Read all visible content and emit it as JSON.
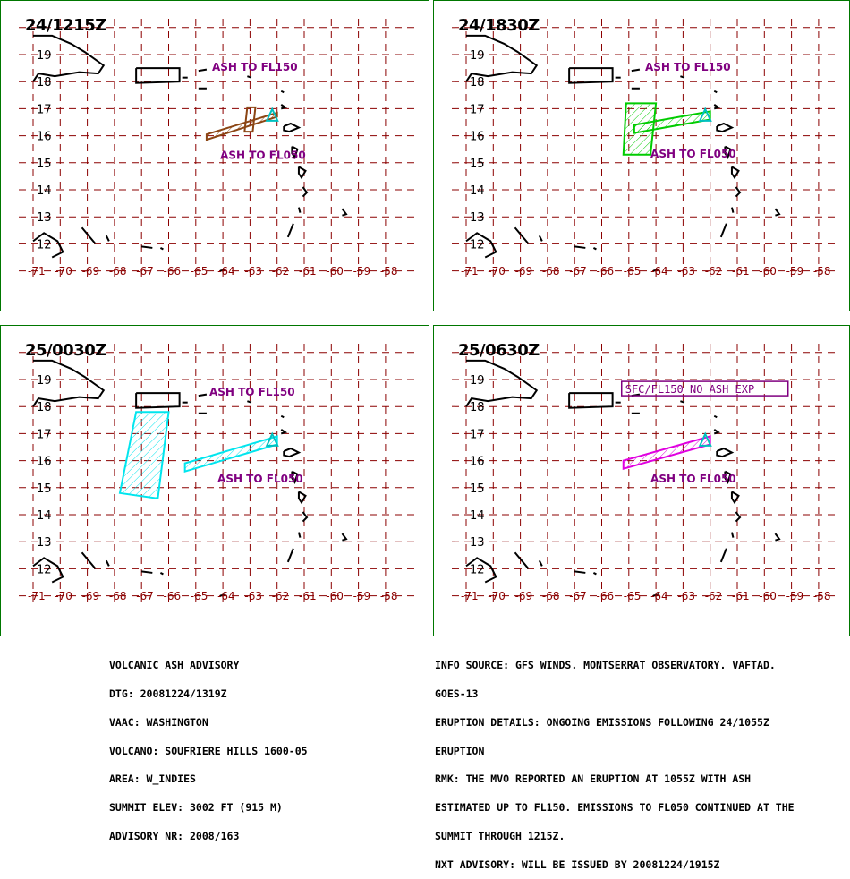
{
  "colors": {
    "grid": "#8b0000",
    "border": "#007700",
    "coast": "#000000",
    "label": "#800080",
    "volcano": "#00c0c0"
  },
  "lat_ticks": [
    "19",
    "18",
    "17",
    "16",
    "15",
    "14",
    "13",
    "12"
  ],
  "lon_ticks": [
    "-71",
    "-70",
    "-69",
    "-68",
    "-67",
    "-66",
    "-65",
    "-64",
    "-63",
    "-62",
    "-61",
    "-60",
    "-59",
    "-58"
  ],
  "panels": [
    {
      "title": "24/1215Z",
      "labels": [
        {
          "text": "ASH TO FL150",
          "lon": -64.4,
          "lat": 18.4
        },
        {
          "text": "ASH TO FL050",
          "lon": -64.1,
          "lat": 15.15
        }
      ],
      "polygons": [
        {
          "color": "#8b4513",
          "fill": "none",
          "points": [
            [
              -63.1,
              17.05
            ],
            [
              -62.8,
              17.05
            ],
            [
              -62.9,
              16.15
            ],
            [
              -63.2,
              16.15
            ]
          ]
        },
        {
          "color": "#8b4513",
          "fill": "hatch",
          "points": [
            [
              -64.6,
              16.05
            ],
            [
              -62.0,
              16.85
            ],
            [
              -62.0,
              16.7
            ],
            [
              -64.6,
              15.85
            ]
          ]
        }
      ]
    },
    {
      "title": "24/1830Z",
      "labels": [
        {
          "text": "ASH TO FL150",
          "lon": -64.4,
          "lat": 18.4
        },
        {
          "text": "ASH TO FL050",
          "lon": -64.2,
          "lat": 15.2
        }
      ],
      "polygons": [
        {
          "color": "#00cc00",
          "fill": "hatch",
          "points": [
            [
              -65.1,
              17.2
            ],
            [
              -64.0,
              17.2
            ],
            [
              -64.2,
              15.3
            ],
            [
              -65.2,
              15.3
            ]
          ]
        },
        {
          "color": "#00cc00",
          "fill": "hatch",
          "points": [
            [
              -64.8,
              16.4
            ],
            [
              -62.0,
              16.9
            ],
            [
              -62.0,
              16.6
            ],
            [
              -64.8,
              16.1
            ]
          ]
        }
      ]
    },
    {
      "title": "25/0030Z",
      "labels": [
        {
          "text": "ASH TO FL150",
          "lon": -64.5,
          "lat": 18.4
        },
        {
          "text": "ASH TO FL050",
          "lon": -64.2,
          "lat": 15.2
        }
      ],
      "polygons": [
        {
          "color": "#00e5ee",
          "fill": "hatch",
          "points": [
            [
              -67.2,
              17.8
            ],
            [
              -66.0,
              17.8
            ],
            [
              -66.4,
              14.6
            ],
            [
              -67.8,
              14.8
            ]
          ]
        },
        {
          "color": "#00e5ee",
          "fill": "hatch",
          "points": [
            [
              -65.4,
              15.9
            ],
            [
              -62.0,
              16.9
            ],
            [
              -62.0,
              16.6
            ],
            [
              -65.4,
              15.6
            ]
          ]
        }
      ]
    },
    {
      "title": "25/0630Z",
      "labels": [
        {
          "text": "ASH TO FL050",
          "lon": -64.2,
          "lat": 15.2
        }
      ],
      "boxed_label": {
        "text": "SFC/FL150 NO ASH EXP",
        "lon": -65.2,
        "lat": 18.5
      },
      "polygons": [
        {
          "color": "#e000e0",
          "fill": "hatch",
          "points": [
            [
              -65.2,
              16.0
            ],
            [
              -62.0,
              16.9
            ],
            [
              -62.0,
              16.6
            ],
            [
              -65.2,
              15.7
            ]
          ]
        }
      ]
    }
  ],
  "advisory_left": [
    "VOLCANIC ASH ADVISORY",
    "DTG: 20081224/1319Z",
    "VAAC: WASHINGTON",
    "VOLCANO: SOUFRIERE HILLS 1600-05",
    "AREA: W_INDIES",
    "SUMMIT ELEV: 3002 FT (915 M)",
    "ADVISORY NR: 2008/163"
  ],
  "advisory_right": [
    "INFO SOURCE: GFS WINDS. MONTSERRAT OBSERVATORY. VAFTAD.",
    "GOES-13",
    "ERUPTION DETAILS: ONGOING EMISSIONS FOLLOWING 24/1055Z",
    "ERUPTION",
    "RMK: THE MVO REPORTED AN ERUPTION AT 1055Z WITH ASH",
    "ESTIMATED UP TO FL150. EMISSIONS TO FL050 CONTINUED AT THE",
    "SUMMIT THROUGH 1215Z.",
    "NXT ADVISORY: WILL BE ISSUED BY 20081224/1915Z"
  ]
}
